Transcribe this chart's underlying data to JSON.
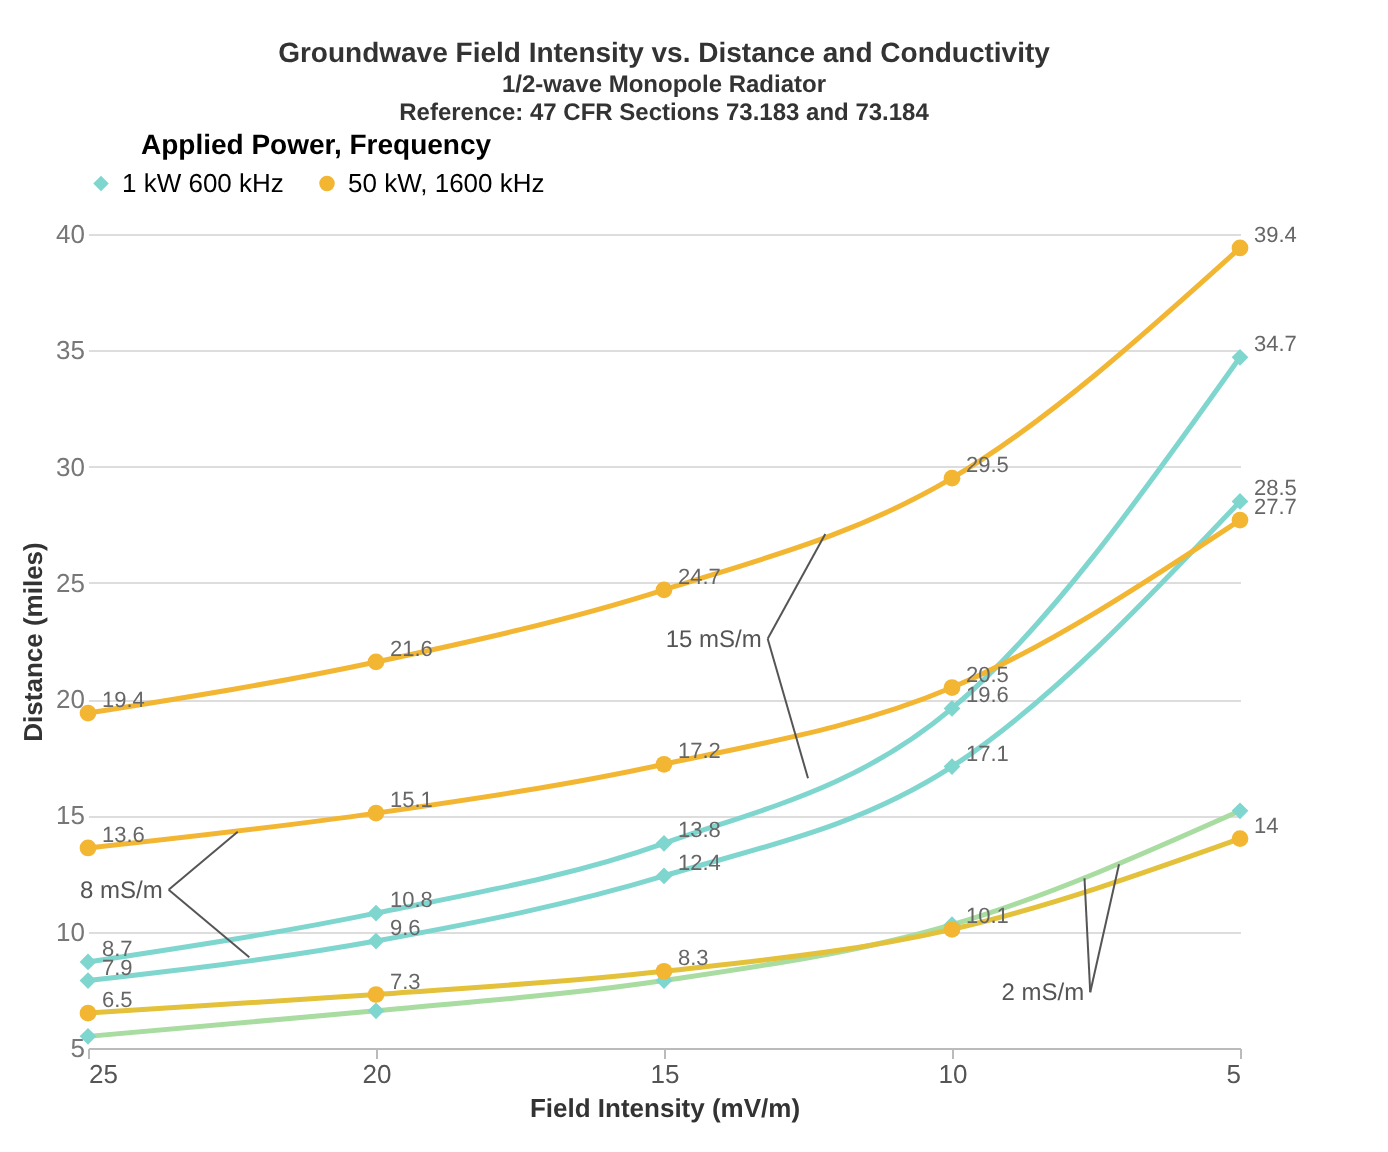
{
  "chart_data": {
    "type": "line",
    "title": "Groundwave Field Intensity vs. Distance and Conductivity",
    "subtitle": "1/2-wave Monopole Radiator\nReference:  47 CFR Sections 73.183 and 73.184",
    "xlabel": "Field Intensity (mV/m)",
    "ylabel": "Distance (miles)",
    "legend_title": "Applied Power, Frequency",
    "x": [
      25,
      20,
      15,
      10,
      5
    ],
    "xlim": [
      25,
      5
    ],
    "xticks": [
      25,
      20,
      15,
      10,
      5
    ],
    "ylim": [
      5,
      40
    ],
    "yticks": [
      5,
      10,
      15,
      20,
      25,
      30,
      35,
      40
    ],
    "series": [
      {
        "name": "1 kW  600 kHz",
        "color": "#7fd6cf",
        "marker": "diamond",
        "values": [
          8.7,
          10.8,
          13.8,
          19.6,
          34.7
        ],
        "value_labels": [
          "8.7",
          "10.8",
          "13.8",
          "19.6",
          "34.7"
        ]
      },
      {
        "color": "#7fd6cf",
        "marker": "diamond",
        "values": [
          7.9,
          9.6,
          12.4,
          17.1,
          28.5
        ],
        "value_labels": [
          "7.9",
          "9.6",
          "12.4",
          "17.1",
          "28.5"
        ]
      },
      {
        "color": "#a8dca0",
        "marker": "diamond",
        "values": [
          5.5,
          6.6,
          7.9,
          10.3,
          15.2
        ],
        "value_labels": [
          null,
          null,
          null,
          null,
          null
        ]
      },
      {
        "name": "50 kW, 1600 kHz",
        "color": "#f2b632",
        "marker": "circle",
        "values": [
          19.4,
          21.6,
          24.7,
          29.5,
          39.4
        ],
        "value_labels": [
          "19.4",
          "21.6",
          "24.7",
          "29.5",
          "39.4"
        ]
      },
      {
        "color": "#f2b632",
        "marker": "circle",
        "values": [
          13.6,
          15.1,
          17.2,
          20.5,
          27.7
        ],
        "value_labels": [
          "13.6",
          "15.1",
          "17.2",
          "20.5",
          "27.7"
        ]
      },
      {
        "color": "#e3c13a",
        "marker": "circle",
        "values": [
          6.5,
          7.3,
          8.3,
          10.1,
          14
        ],
        "value_labels": [
          "6.5",
          "7.3",
          "8.3",
          "10.1",
          "14"
        ]
      }
    ],
    "annotations": [
      {
        "text": "15 mS/m",
        "x": 12.2,
        "y": 27.1
      },
      {
        "text": "8 mS/m",
        "x": 22.4,
        "y": 14.3
      },
      {
        "text": "2 mS/m",
        "x": 7.7,
        "y": 12.3
      }
    ],
    "grid": "y",
    "legend": "top",
    "line_style": "solid"
  }
}
